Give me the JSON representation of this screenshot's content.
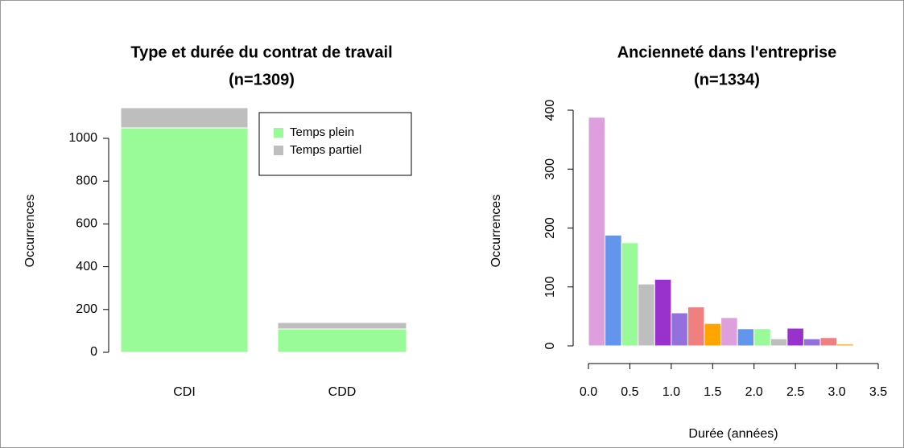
{
  "chart_data": [
    {
      "type": "bar",
      "title": "Type et durée du contrat de travail",
      "subtitle": "(n=1309)",
      "y_label": "Occurrences",
      "categories": [
        "CDI",
        "CDD"
      ],
      "series": [
        {
          "name": "Temps plein",
          "color": "#98fb98",
          "values": [
            1049,
            109
          ]
        },
        {
          "name": "Temps partiel",
          "color": "#bebebe",
          "values": [
            94,
            30
          ]
        }
      ],
      "ylim": [
        0,
        1200
      ],
      "yticks": [
        0,
        200,
        400,
        600,
        800,
        1000
      ],
      "legend": "top-right",
      "stacked": true
    },
    {
      "type": "histogram",
      "title": "Ancienneté dans l'entreprise",
      "subtitle": "(n=1334)",
      "x_label": "Durée (années)",
      "y_label": "Occurrences",
      "bins": [
        0,
        0.2,
        0.4,
        0.6,
        0.8,
        1.0,
        1.2,
        1.4,
        1.6,
        1.8,
        2.0,
        2.2,
        2.4,
        2.6,
        2.8,
        3.0,
        3.2
      ],
      "values": [
        388,
        188,
        175,
        105,
        113,
        56,
        66,
        38,
        48,
        29,
        29,
        12,
        30,
        12,
        14,
        3
      ],
      "colors": [
        "#dda0dd",
        "#6495ed",
        "#98fb98",
        "#bebebe",
        "#9932cc",
        "#9370db",
        "#f08080",
        "#ffa500"
      ],
      "xlim": [
        0,
        3.5
      ],
      "ylim": [
        0,
        400
      ],
      "xticks": [
        {
          "value": 0,
          "label": "0.0"
        },
        0.5,
        {
          "value": 1,
          "label": "1.0"
        },
        1.5,
        {
          "value": 2,
          "label": "2.0"
        },
        2.5,
        {
          "value": 3,
          "label": "3.0"
        },
        3.5
      ],
      "yticks": [
        0,
        100,
        200,
        300,
        400
      ]
    }
  ]
}
